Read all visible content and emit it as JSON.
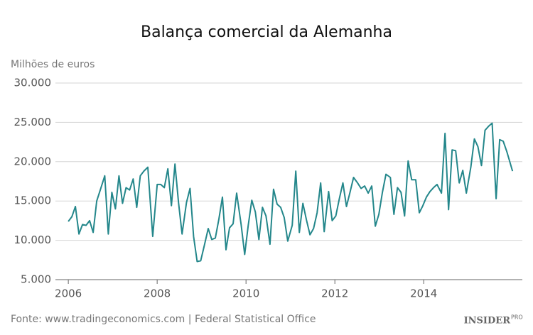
{
  "chart_data": {
    "type": "line",
    "title": "Balança comercial da Alemanha",
    "y_label": "Milhões de euros",
    "source": "Fonte: www.tradingeconomics.com | Federal Statistical Office",
    "logo": "INSIDER",
    "logo_suffix": "PRO",
    "grid": true,
    "xlim": [
      2005.71,
      2016.22
    ],
    "xticks": [
      2006,
      2008,
      2010,
      2012,
      2014
    ],
    "ylim": [
      5000,
      30000
    ],
    "yticks": [
      {
        "value": 5000,
        "label": "5.000"
      },
      {
        "value": 10000,
        "label": "10.000"
      },
      {
        "value": 15000,
        "label": "15.000"
      },
      {
        "value": 20000,
        "label": "20.000"
      },
      {
        "value": 25000,
        "label": "25.000"
      },
      {
        "value": 30000,
        "label": "30.000"
      }
    ],
    "x": [
      2006.0,
      2006.08,
      2006.16,
      2006.24,
      2006.32,
      2006.4,
      2006.48,
      2006.56,
      2006.64,
      2006.72,
      2006.82,
      2006.9,
      2006.98,
      2007.06,
      2007.14,
      2007.22,
      2007.3,
      2007.38,
      2007.46,
      2007.54,
      2007.62,
      2007.7,
      2007.79,
      2007.9,
      2008.0,
      2008.08,
      2008.16,
      2008.24,
      2008.32,
      2008.4,
      2008.48,
      2008.56,
      2008.66,
      2008.74,
      2008.82,
      2008.9,
      2008.98,
      2009.06,
      2009.15,
      2009.23,
      2009.31,
      2009.39,
      2009.47,
      2009.55,
      2009.63,
      2009.71,
      2009.79,
      2009.89,
      2009.97,
      2010.05,
      2010.13,
      2010.21,
      2010.29,
      2010.37,
      2010.45,
      2010.54,
      2010.62,
      2010.7,
      2010.78,
      2010.86,
      2010.94,
      2011.04,
      2011.12,
      2011.2,
      2011.28,
      2011.36,
      2011.44,
      2011.52,
      2011.6,
      2011.68,
      2011.76,
      2011.86,
      2011.94,
      2012.02,
      2012.1,
      2012.18,
      2012.26,
      2012.34,
      2012.42,
      2012.51,
      2012.59,
      2012.67,
      2012.75,
      2012.83,
      2012.91,
      2012.99,
      2013.07,
      2013.15,
      2013.25,
      2013.33,
      2013.41,
      2013.49,
      2013.57,
      2013.65,
      2013.73,
      2013.82,
      2013.9,
      2013.98,
      2014.06,
      2014.14,
      2014.22,
      2014.3,
      2014.4,
      2014.48,
      2014.56,
      2014.64,
      2014.72,
      2014.8,
      2014.88,
      2014.96,
      2015.06,
      2015.14,
      2015.22,
      2015.3,
      2015.38,
      2015.46,
      2015.54,
      2015.63,
      2015.71,
      2015.79,
      2015.87,
      2016.0
    ],
    "series": [
      {
        "color": "#24878b",
        "values": [
          12400,
          13000,
          14300,
          10800,
          12000,
          11900,
          12500,
          11000,
          15000,
          16400,
          18200,
          10800,
          16100,
          14000,
          18200,
          14700,
          16700,
          16400,
          17800,
          14200,
          18200,
          18800,
          19300,
          10500,
          17100,
          17100,
          16700,
          19100,
          14400,
          19700,
          14800,
          10800,
          14800,
          16600,
          10500,
          7300,
          7400,
          9300,
          11500,
          10100,
          10300,
          12700,
          15500,
          8800,
          11600,
          12100,
          16000,
          12000,
          8200,
          11900,
          15100,
          13600,
          10100,
          14200,
          13100,
          9500,
          16500,
          14600,
          14200,
          12900,
          9900,
          11900,
          18800,
          11000,
          14700,
          12600,
          10700,
          11500,
          13500,
          17300,
          11100,
          16200,
          12500,
          13100,
          15300,
          17300,
          14300,
          16100,
          18000,
          17300,
          16600,
          16900,
          16000,
          16900,
          11800,
          13300,
          16100,
          18400,
          18000,
          13300,
          16700,
          16100,
          13100,
          20100,
          17700,
          17700,
          13500,
          14400,
          15500,
          16200,
          16700,
          17100,
          16000,
          23600,
          13900,
          21500,
          21400,
          17300,
          18900,
          16000,
          19300,
          22900,
          21900,
          19500,
          24000,
          24500,
          24900,
          15300,
          22800,
          22600,
          21300,
          18800
        ]
      }
    ]
  }
}
